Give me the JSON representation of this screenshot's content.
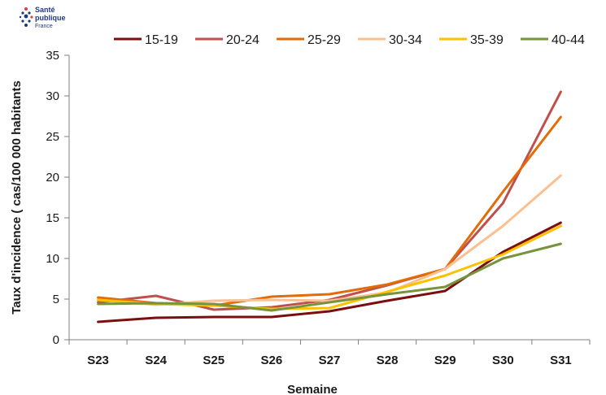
{
  "brand": {
    "line1": "Santé",
    "line2": "publique",
    "line3": "France"
  },
  "chart_data": {
    "type": "line",
    "title": "",
    "xlabel": "Semaine",
    "ylabel": "Taux d'incidence ( cas/100 000 habitants",
    "categories": [
      "S23",
      "S24",
      "S25",
      "S26",
      "S27",
      "S28",
      "S29",
      "S30",
      "S31"
    ],
    "ylim": [
      0,
      35
    ],
    "yticks": [
      0,
      5,
      10,
      15,
      20,
      25,
      30,
      35
    ],
    "grid": false,
    "legend_position": "top",
    "series": [
      {
        "name": "15-19",
        "color": "#7b0f0f",
        "values": [
          2.2,
          2.7,
          2.8,
          2.8,
          3.5,
          4.8,
          6.0,
          10.8,
          14.4
        ]
      },
      {
        "name": "20-24",
        "color": "#c0504d",
        "values": [
          4.6,
          5.4,
          3.7,
          4.0,
          4.9,
          6.7,
          8.7,
          16.8,
          30.5
        ]
      },
      {
        "name": "25-29",
        "color": "#e36c0a",
        "values": [
          5.2,
          4.5,
          4.2,
          5.3,
          5.6,
          6.8,
          8.7,
          18.2,
          27.4
        ]
      },
      {
        "name": "30-34",
        "color": "#fac090",
        "values": [
          4.9,
          4.3,
          4.8,
          4.9,
          4.8,
          5.8,
          8.7,
          14.0,
          20.2
        ]
      },
      {
        "name": "35-39",
        "color": "#ffc000",
        "values": [
          4.9,
          4.4,
          4.2,
          3.8,
          3.9,
          5.9,
          7.9,
          10.5,
          14.0
        ]
      },
      {
        "name": "40-44",
        "color": "#77933c",
        "values": [
          4.4,
          4.5,
          4.4,
          3.6,
          4.6,
          5.6,
          6.5,
          10.0,
          11.8
        ]
      }
    ]
  }
}
